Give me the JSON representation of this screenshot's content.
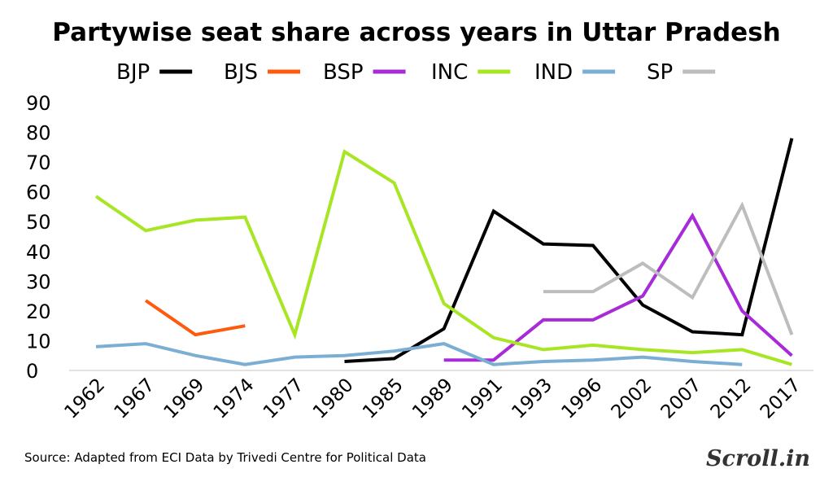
{
  "chart_data": {
    "type": "line",
    "title": "Partywise seat share across years in Uttar Pradesh",
    "categories": [
      "1962",
      "1967",
      "1969",
      "1974",
      "1977",
      "1980",
      "1985",
      "1989",
      "1991",
      "1993",
      "1996",
      "2002",
      "2007",
      "2012",
      "2017"
    ],
    "ylim": [
      0,
      90
    ],
    "yticks": [
      0,
      10,
      20,
      30,
      40,
      50,
      60,
      70,
      80,
      90
    ],
    "legend_position": "top",
    "grid": false,
    "series": [
      {
        "name": "BJP",
        "color": "#000000",
        "values": [
          null,
          null,
          null,
          null,
          null,
          3,
          4,
          14,
          53.5,
          42.5,
          42,
          22,
          13,
          12,
          78
        ]
      },
      {
        "name": "BJS",
        "color": "#ff5a0e",
        "values": [
          null,
          23.5,
          12,
          15,
          null,
          null,
          null,
          null,
          null,
          null,
          null,
          null,
          null,
          null,
          null
        ]
      },
      {
        "name": "BSP",
        "color": "#a72bd8",
        "values": [
          null,
          null,
          null,
          null,
          null,
          null,
          null,
          3.5,
          3.5,
          17,
          17,
          25,
          52,
          20,
          5
        ]
      },
      {
        "name": "INC",
        "color": "#a8e625",
        "values": [
          58.5,
          47,
          50.5,
          51.5,
          12,
          73.5,
          63,
          22.5,
          11,
          7,
          8.5,
          7,
          6,
          7,
          2
        ]
      },
      {
        "name": "IND",
        "color": "#7baed3",
        "values": [
          8,
          9,
          5,
          2,
          4.5,
          5,
          6.5,
          9,
          2,
          3,
          3.5,
          4.5,
          3,
          2,
          null
        ]
      },
      {
        "name": "SP",
        "color": "#bdbdbd",
        "values": [
          null,
          null,
          null,
          null,
          null,
          null,
          null,
          null,
          null,
          26.5,
          26.5,
          36,
          24.5,
          55.5,
          12
        ]
      }
    ],
    "source": "Source: Adapted from ECI Data by Trivedi Centre for Political Data"
  },
  "brand": "Scroll.in"
}
